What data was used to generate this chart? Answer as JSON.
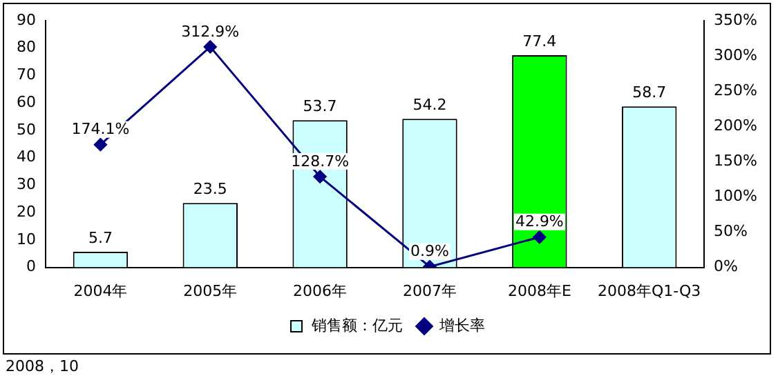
{
  "chart_data": {
    "type": "bar",
    "categories": [
      "2004年",
      "2005年",
      "2006年",
      "2007年",
      "2008年E",
      "2008年Q1-Q3"
    ],
    "series": [
      {
        "name": "销售额：亿元",
        "colors": [
          "#ccffff",
          "#ccffff",
          "#ccffff",
          "#ccffff",
          "#00ff00",
          "#ccffff"
        ],
        "values": [
          5.7,
          23.5,
          53.7,
          54.2,
          77.4,
          58.7
        ]
      },
      {
        "name": "增长率",
        "type": "line",
        "axis": "y2",
        "color": "#000080",
        "marker": "diamond",
        "values": [
          174.1,
          312.9,
          128.7,
          0.9,
          42.9,
          null
        ],
        "value_labels": [
          "174.1%",
          "312.9%",
          "128.7%",
          "0.9%",
          "42.9%",
          null
        ]
      }
    ],
    "ylim": [
      0,
      90
    ],
    "yticks": [
      0,
      10,
      20,
      30,
      40,
      50,
      60,
      70,
      80,
      90
    ],
    "y2lim": [
      0,
      350
    ],
    "y2ticks": [
      {
        "value": 0,
        "label": "0%"
      },
      {
        "value": 50,
        "label": "50%"
      },
      {
        "value": 100,
        "label": "100%"
      },
      {
        "value": 150,
        "label": "150%"
      },
      {
        "value": 200,
        "label": "200%"
      },
      {
        "value": 250,
        "label": "250%"
      },
      {
        "value": 300,
        "label": "300%"
      },
      {
        "value": 350,
        "label": "350%"
      }
    ],
    "data_labels": true,
    "grid": false,
    "legend": "bottom",
    "annotations": [
      "2008，10"
    ]
  }
}
